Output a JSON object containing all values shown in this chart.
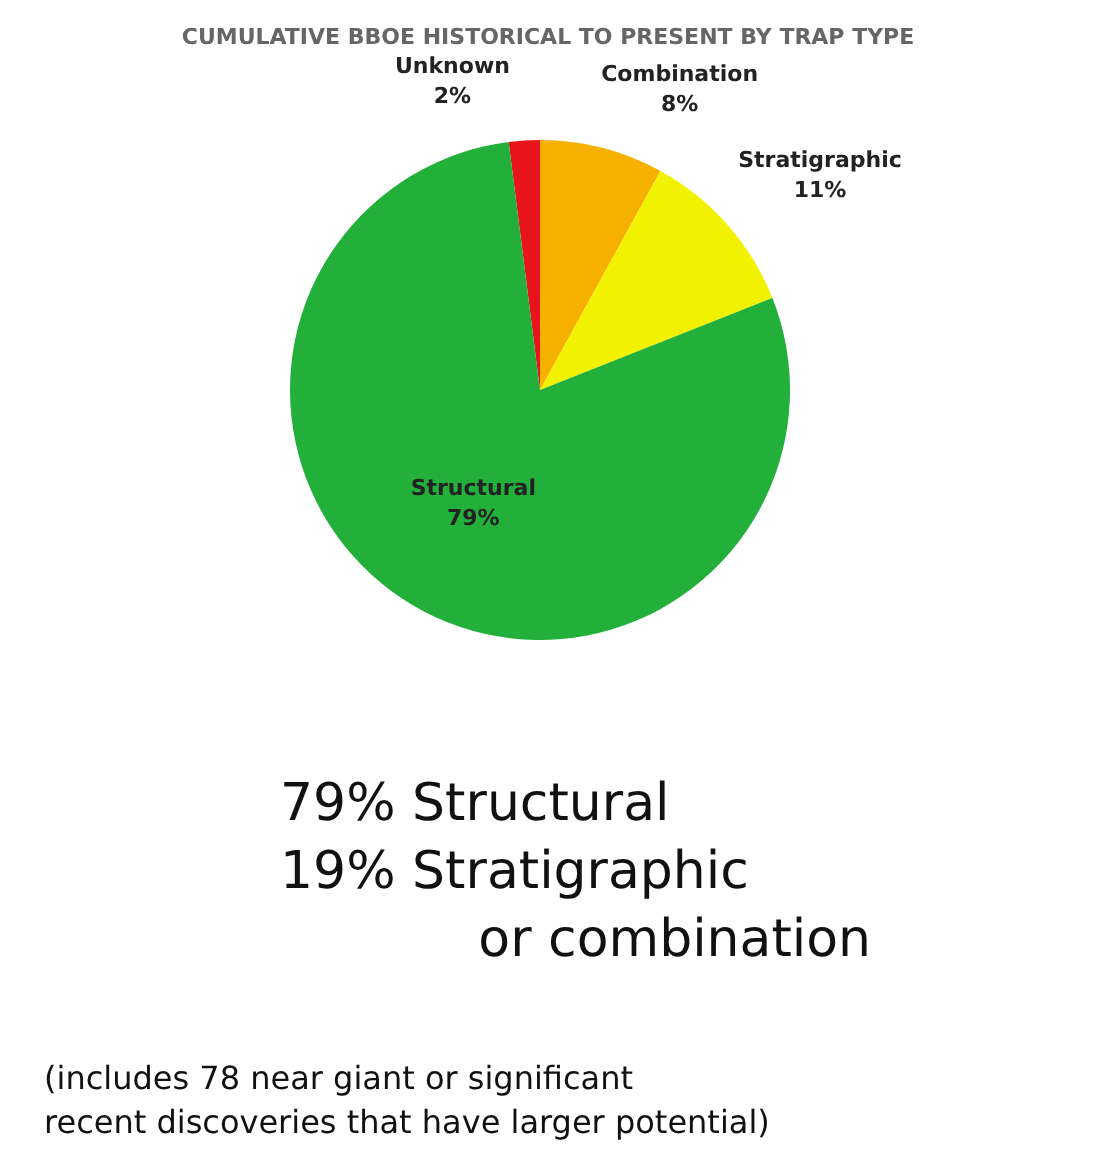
{
  "chart_data": {
    "type": "pie",
    "title": "CUMULATIVE BBOE HISTORICAL TO PRESENT BY TRAP TYPE",
    "categories": [
      "Unknown",
      "Combination",
      "Stratigraphic",
      "Structural"
    ],
    "values": [
      2,
      8,
      11,
      79
    ],
    "value_labels": [
      "2%",
      "8%",
      "11%",
      "79%"
    ],
    "colors": [
      "#e8141c",
      "#f5b000",
      "#f2f200",
      "#22b03a"
    ],
    "legend": false,
    "annotations": [
      "79% Structural\n19% Stratigraphic\n            or combination",
      "(includes 78 near giant or significant\nrecent discoveries that have larger potential)"
    ]
  }
}
